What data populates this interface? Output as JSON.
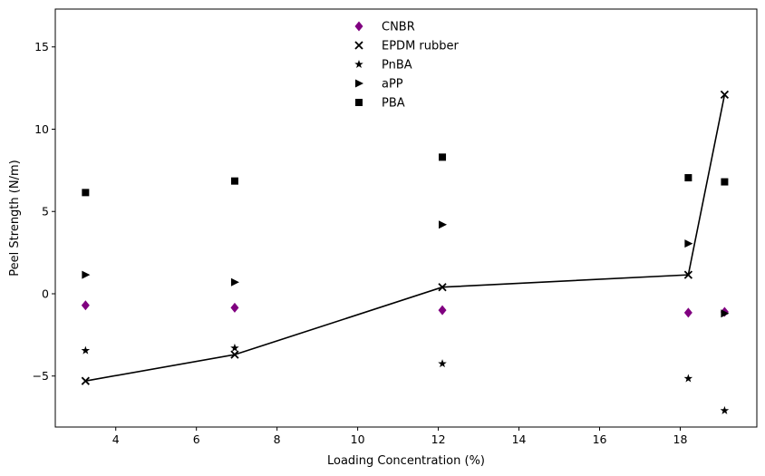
{
  "chart_data": {
    "type": "scatter",
    "title": "",
    "xlabel": "Loading Concentration (%)",
    "ylabel": "Peel Strength (N/m)",
    "xlim": [
      2.5,
      19.9
    ],
    "ylim": [
      -8.1,
      17.3
    ],
    "xticks": [
      4,
      6,
      8,
      10,
      12,
      14,
      16,
      18
    ],
    "yticks": [
      -5,
      0,
      5,
      10,
      15
    ],
    "grid": false,
    "legend_placement": "upper-center",
    "series": [
      {
        "name": "CNBR",
        "marker": "diamond",
        "color": "#800080",
        "x": [
          3.25,
          6.95,
          12.1,
          18.2,
          19.1
        ],
        "y": [
          -0.7,
          -0.85,
          -1.0,
          -1.15,
          -1.1
        ]
      },
      {
        "name": "EPDM rubber",
        "marker": "x",
        "color": "#000000",
        "line": true,
        "x": [
          3.25,
          6.95,
          12.1,
          18.2,
          19.1
        ],
        "y": [
          -5.3,
          -3.7,
          0.4,
          1.15,
          12.1
        ]
      },
      {
        "name": "PnBA",
        "marker": "star",
        "color": "#000000",
        "x": [
          3.25,
          6.95,
          12.1,
          18.2,
          19.1
        ],
        "y": [
          -3.45,
          -3.3,
          -4.25,
          -5.15,
          -7.1
        ]
      },
      {
        "name": "aPP",
        "marker": "triangle-right",
        "color": "#000000",
        "x": [
          3.25,
          6.95,
          12.1,
          18.2,
          19.1
        ],
        "y": [
          1.15,
          0.7,
          4.2,
          3.05,
          -1.2
        ]
      },
      {
        "name": "PBA",
        "marker": "square",
        "color": "#000000",
        "x": [
          3.25,
          6.95,
          12.1,
          18.2,
          19.1
        ],
        "y": [
          6.15,
          6.85,
          8.3,
          7.05,
          6.8
        ]
      }
    ]
  }
}
